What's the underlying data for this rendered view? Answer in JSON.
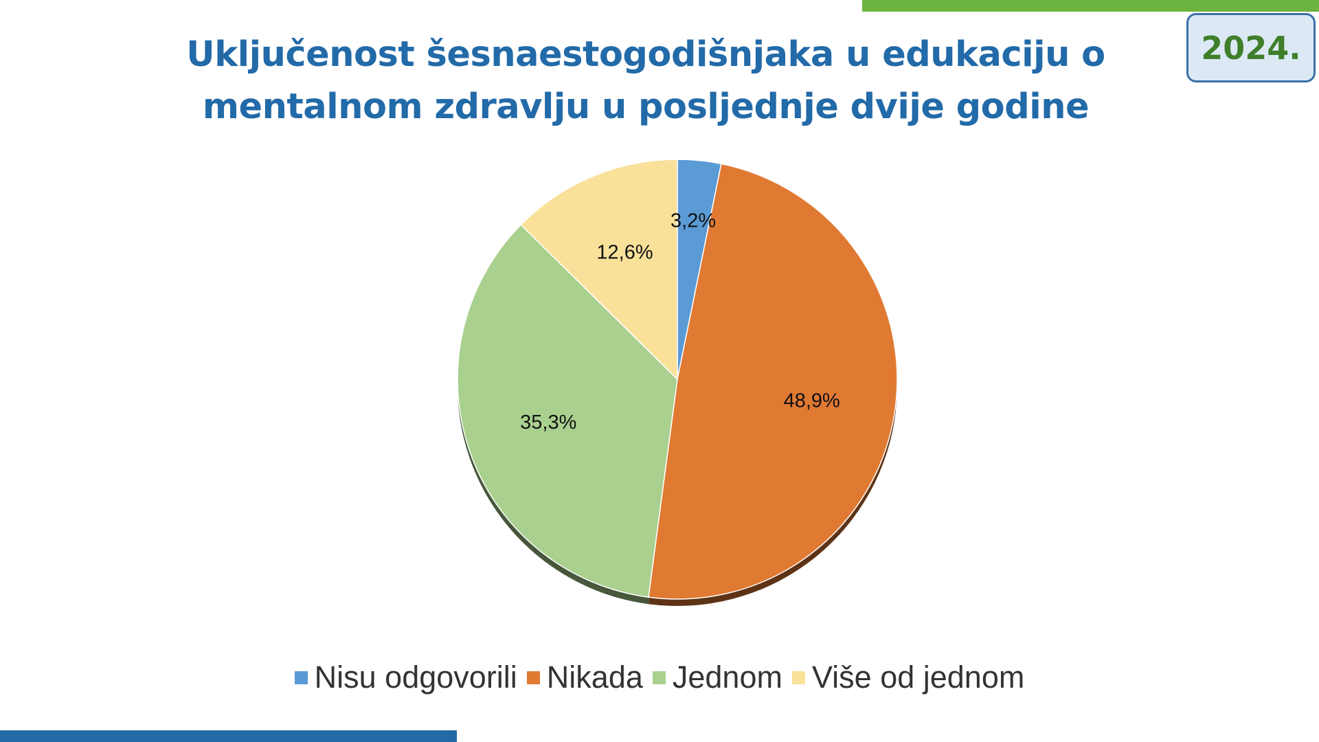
{
  "badge": {
    "year": "2024."
  },
  "colors": {
    "accent_green": "#6db33f",
    "accent_blue": "#2369a6",
    "title": "#226aa8"
  },
  "chart_data": {
    "type": "pie",
    "title_line1": "Uključenost šesnaestogodišnjaka u edukaciju o",
    "title_line2": "mentalnom zdravlju u posljednje dvije godine",
    "categories": [
      "Nisu odgovorili",
      "Nikada",
      "Jednom",
      "Više od jednom"
    ],
    "values": [
      3.2,
      48.9,
      35.3,
      12.6
    ],
    "labels": [
      "3,2%",
      "48,9%",
      "35,3%",
      "12,6%"
    ],
    "colors": [
      "#5b9bd5",
      "#e07a33",
      "#a9d08e",
      "#f9e19a"
    ],
    "legend_position": "bottom"
  }
}
